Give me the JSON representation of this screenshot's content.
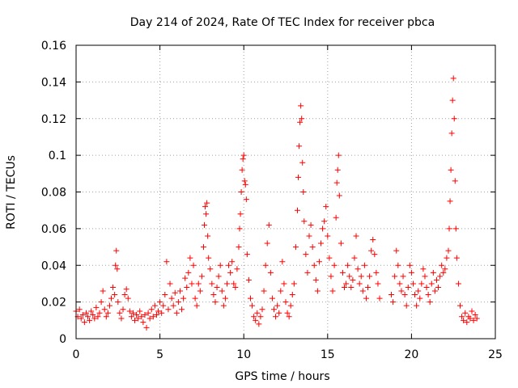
{
  "chart_data": {
    "type": "scatter",
    "title": "Day 214 of 2024, Rate Of TEC Index for receiver pbca",
    "xlabel": "GPS time / hours",
    "ylabel": "ROTI / TECUs",
    "xlim": [
      0,
      25
    ],
    "ylim": [
      0,
      0.16
    ],
    "x_ticks": [
      "0",
      "5",
      "10",
      "15",
      "20",
      "25"
    ],
    "y_ticks": [
      "0",
      "0.02",
      "0.04",
      "0.06",
      "0.08",
      "0.1",
      "0.12",
      "0.14",
      "0.16"
    ],
    "grid": true,
    "marker": "+",
    "marker_color": "#ff0000",
    "series": [
      {
        "name": "ROTI",
        "points": [
          [
            0.0,
            0.015
          ],
          [
            0.1,
            0.012
          ],
          [
            0.2,
            0.016
          ],
          [
            0.3,
            0.011
          ],
          [
            0.4,
            0.013
          ],
          [
            0.5,
            0.009
          ],
          [
            0.6,
            0.014
          ],
          [
            0.7,
            0.012
          ],
          [
            0.8,
            0.01
          ],
          [
            0.9,
            0.015
          ],
          [
            1.0,
            0.013
          ],
          [
            1.1,
            0.011
          ],
          [
            1.2,
            0.017
          ],
          [
            1.3,
            0.012
          ],
          [
            1.4,
            0.014
          ],
          [
            1.5,
            0.02
          ],
          [
            1.6,
            0.026
          ],
          [
            1.7,
            0.016
          ],
          [
            1.8,
            0.012
          ],
          [
            1.9,
            0.014
          ],
          [
            2.0,
            0.018
          ],
          [
            2.1,
            0.022
          ],
          [
            2.2,
            0.028
          ],
          [
            2.3,
            0.024
          ],
          [
            2.35,
            0.04
          ],
          [
            2.4,
            0.048
          ],
          [
            2.45,
            0.038
          ],
          [
            2.5,
            0.02
          ],
          [
            2.6,
            0.014
          ],
          [
            2.7,
            0.011
          ],
          [
            2.8,
            0.016
          ],
          [
            2.9,
            0.024
          ],
          [
            3.0,
            0.027
          ],
          [
            3.1,
            0.022
          ],
          [
            3.2,
            0.015
          ],
          [
            3.3,
            0.012
          ],
          [
            3.4,
            0.014
          ],
          [
            3.5,
            0.01
          ],
          [
            3.6,
            0.013
          ],
          [
            3.7,
            0.011
          ],
          [
            3.8,
            0.015
          ],
          [
            3.9,
            0.012
          ],
          [
            4.0,
            0.009
          ],
          [
            4.1,
            0.013
          ],
          [
            4.2,
            0.006
          ],
          [
            4.3,
            0.014
          ],
          [
            4.4,
            0.011
          ],
          [
            4.5,
            0.016
          ],
          [
            4.6,
            0.012
          ],
          [
            4.7,
            0.018
          ],
          [
            4.8,
            0.013
          ],
          [
            4.9,
            0.015
          ],
          [
            5.0,
            0.02
          ],
          [
            5.1,
            0.014
          ],
          [
            5.2,
            0.018
          ],
          [
            5.3,
            0.024
          ],
          [
            5.4,
            0.042
          ],
          [
            5.5,
            0.016
          ],
          [
            5.6,
            0.03
          ],
          [
            5.7,
            0.022
          ],
          [
            5.8,
            0.018
          ],
          [
            5.9,
            0.025
          ],
          [
            6.0,
            0.014
          ],
          [
            6.1,
            0.02
          ],
          [
            6.2,
            0.026
          ],
          [
            6.3,
            0.016
          ],
          [
            6.4,
            0.022
          ],
          [
            6.5,
            0.033
          ],
          [
            6.6,
            0.028
          ],
          [
            6.7,
            0.036
          ],
          [
            6.8,
            0.044
          ],
          [
            6.9,
            0.03
          ],
          [
            7.0,
            0.04
          ],
          [
            7.1,
            0.022
          ],
          [
            7.2,
            0.018
          ],
          [
            7.3,
            0.03
          ],
          [
            7.4,
            0.026
          ],
          [
            7.5,
            0.034
          ],
          [
            7.6,
            0.05
          ],
          [
            7.65,
            0.062
          ],
          [
            7.7,
            0.072
          ],
          [
            7.75,
            0.068
          ],
          [
            7.8,
            0.074
          ],
          [
            7.85,
            0.056
          ],
          [
            7.9,
            0.044
          ],
          [
            8.0,
            0.038
          ],
          [
            8.1,
            0.03
          ],
          [
            8.2,
            0.024
          ],
          [
            8.3,
            0.02
          ],
          [
            8.4,
            0.028
          ],
          [
            8.5,
            0.034
          ],
          [
            8.6,
            0.04
          ],
          [
            8.7,
            0.026
          ],
          [
            8.8,
            0.018
          ],
          [
            8.9,
            0.022
          ],
          [
            9.0,
            0.03
          ],
          [
            9.1,
            0.04
          ],
          [
            9.2,
            0.036
          ],
          [
            9.3,
            0.042
          ],
          [
            9.4,
            0.03
          ],
          [
            9.5,
            0.028
          ],
          [
            9.6,
            0.038
          ],
          [
            9.7,
            0.05
          ],
          [
            9.75,
            0.06
          ],
          [
            9.8,
            0.068
          ],
          [
            9.85,
            0.08
          ],
          [
            9.9,
            0.092
          ],
          [
            9.95,
            0.098
          ],
          [
            10.0,
            0.1
          ],
          [
            10.05,
            0.086
          ],
          [
            10.1,
            0.084
          ],
          [
            10.15,
            0.076
          ],
          [
            10.2,
            0.046
          ],
          [
            10.3,
            0.032
          ],
          [
            10.4,
            0.022
          ],
          [
            10.5,
            0.018
          ],
          [
            10.6,
            0.012
          ],
          [
            10.7,
            0.01
          ],
          [
            10.8,
            0.014
          ],
          [
            10.9,
            0.008
          ],
          [
            11.0,
            0.012
          ],
          [
            11.1,
            0.016
          ],
          [
            11.2,
            0.026
          ],
          [
            11.3,
            0.04
          ],
          [
            11.4,
            0.052
          ],
          [
            11.5,
            0.062
          ],
          [
            11.6,
            0.036
          ],
          [
            11.7,
            0.022
          ],
          [
            11.8,
            0.016
          ],
          [
            11.9,
            0.012
          ],
          [
            12.0,
            0.018
          ],
          [
            12.1,
            0.014
          ],
          [
            12.2,
            0.026
          ],
          [
            12.3,
            0.042
          ],
          [
            12.4,
            0.03
          ],
          [
            12.5,
            0.02
          ],
          [
            12.6,
            0.014
          ],
          [
            12.7,
            0.012
          ],
          [
            12.8,
            0.018
          ],
          [
            12.9,
            0.024
          ],
          [
            13.0,
            0.03
          ],
          [
            13.1,
            0.05
          ],
          [
            13.2,
            0.07
          ],
          [
            13.25,
            0.088
          ],
          [
            13.3,
            0.105
          ],
          [
            13.35,
            0.118
          ],
          [
            13.4,
            0.127
          ],
          [
            13.45,
            0.12
          ],
          [
            13.5,
            0.096
          ],
          [
            13.55,
            0.08
          ],
          [
            13.6,
            0.064
          ],
          [
            13.7,
            0.046
          ],
          [
            13.8,
            0.036
          ],
          [
            13.9,
            0.056
          ],
          [
            14.0,
            0.062
          ],
          [
            14.1,
            0.05
          ],
          [
            14.2,
            0.04
          ],
          [
            14.3,
            0.032
          ],
          [
            14.4,
            0.026
          ],
          [
            14.5,
            0.042
          ],
          [
            14.6,
            0.052
          ],
          [
            14.7,
            0.06
          ],
          [
            14.8,
            0.064
          ],
          [
            14.9,
            0.072
          ],
          [
            15.0,
            0.056
          ],
          [
            15.1,
            0.044
          ],
          [
            15.2,
            0.034
          ],
          [
            15.3,
            0.026
          ],
          [
            15.4,
            0.04
          ],
          [
            15.5,
            0.066
          ],
          [
            15.55,
            0.085
          ],
          [
            15.6,
            0.092
          ],
          [
            15.65,
            0.1
          ],
          [
            15.7,
            0.078
          ],
          [
            15.8,
            0.052
          ],
          [
            15.9,
            0.036
          ],
          [
            16.0,
            0.028
          ],
          [
            16.1,
            0.03
          ],
          [
            16.2,
            0.04
          ],
          [
            16.3,
            0.034
          ],
          [
            16.4,
            0.028
          ],
          [
            16.5,
            0.032
          ],
          [
            16.6,
            0.044
          ],
          [
            16.7,
            0.056
          ],
          [
            16.8,
            0.038
          ],
          [
            16.9,
            0.03
          ],
          [
            17.0,
            0.034
          ],
          [
            17.1,
            0.026
          ],
          [
            17.2,
            0.04
          ],
          [
            17.3,
            0.022
          ],
          [
            17.4,
            0.028
          ],
          [
            17.5,
            0.034
          ],
          [
            17.6,
            0.048
          ],
          [
            17.7,
            0.054
          ],
          [
            17.8,
            0.046
          ],
          [
            17.9,
            0.036
          ],
          [
            18.0,
            0.03
          ],
          [
            18.1,
            0.022
          ],
          [
            18.8,
            0.024
          ],
          [
            18.9,
            0.02
          ],
          [
            19.0,
            0.034
          ],
          [
            19.1,
            0.048
          ],
          [
            19.2,
            0.04
          ],
          [
            19.3,
            0.03
          ],
          [
            19.4,
            0.026
          ],
          [
            19.5,
            0.034
          ],
          [
            19.6,
            0.024
          ],
          [
            19.7,
            0.018
          ],
          [
            19.8,
            0.028
          ],
          [
            19.9,
            0.04
          ],
          [
            20.0,
            0.036
          ],
          [
            20.1,
            0.03
          ],
          [
            20.2,
            0.024
          ],
          [
            20.3,
            0.018
          ],
          [
            20.4,
            0.026
          ],
          [
            20.5,
            0.022
          ],
          [
            20.6,
            0.03
          ],
          [
            20.7,
            0.038
          ],
          [
            20.8,
            0.034
          ],
          [
            20.9,
            0.028
          ],
          [
            21.0,
            0.024
          ],
          [
            21.1,
            0.02
          ],
          [
            21.2,
            0.03
          ],
          [
            21.3,
            0.036
          ],
          [
            21.4,
            0.026
          ],
          [
            21.5,
            0.032
          ],
          [
            21.6,
            0.028
          ],
          [
            21.7,
            0.034
          ],
          [
            21.8,
            0.04
          ],
          [
            21.9,
            0.036
          ],
          [
            22.0,
            0.038
          ],
          [
            22.1,
            0.044
          ],
          [
            22.2,
            0.048
          ],
          [
            22.25,
            0.06
          ],
          [
            22.3,
            0.075
          ],
          [
            22.35,
            0.092
          ],
          [
            22.4,
            0.112
          ],
          [
            22.45,
            0.13
          ],
          [
            22.5,
            0.142
          ],
          [
            22.55,
            0.12
          ],
          [
            22.6,
            0.086
          ],
          [
            22.65,
            0.06
          ],
          [
            22.7,
            0.044
          ],
          [
            22.8,
            0.03
          ],
          [
            22.9,
            0.018
          ],
          [
            23.0,
            0.012
          ],
          [
            23.1,
            0.01
          ],
          [
            23.2,
            0.014
          ],
          [
            23.3,
            0.009
          ],
          [
            23.4,
            0.012
          ],
          [
            23.5,
            0.011
          ],
          [
            23.6,
            0.015
          ],
          [
            23.7,
            0.01
          ],
          [
            23.8,
            0.013
          ],
          [
            23.9,
            0.011
          ]
        ]
      }
    ]
  }
}
